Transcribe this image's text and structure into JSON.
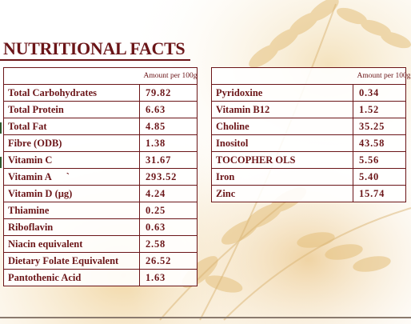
{
  "title": "NUTRITIONAL FACTS",
  "left_table": {
    "header": "Amount per 100g",
    "rows": [
      {
        "name": "Total Carbohydrates",
        "value": "79.82"
      },
      {
        "name": "Total Protein",
        "value": "6.63"
      },
      {
        "name": "Total Fat",
        "value": "4.85"
      },
      {
        "name": "Fibre (ODB)",
        "value": "1.38"
      },
      {
        "name": "Vitamin C",
        "value": "31.67"
      },
      {
        "name": "Vitamin A      `",
        "value": "293.52"
      },
      {
        "name": "Vitamin D (µg)",
        "value": "4.24"
      },
      {
        "name": "Thiamine",
        "value": "0.25"
      },
      {
        "name": "Riboflavin",
        "value": "0.63"
      },
      {
        "name": "Niacin equivalent",
        "value": "2.58"
      },
      {
        "name": "Dietary Folate Equivalent",
        "value": "26.52"
      },
      {
        "name": "Pantothenic Acid",
        "value": "1.63"
      }
    ]
  },
  "right_table": {
    "header": "Amount per 100g",
    "rows": [
      {
        "name": "Pyridoxine",
        "value": "0.34"
      },
      {
        "name": "Vitamin B12",
        "value": "1.52"
      },
      {
        "name": "Choline",
        "value": "35.25"
      },
      {
        "name": "Inositol",
        "value": "43.58"
      },
      {
        "name": "TOCOPHER OLS",
        "value": "5.56"
      },
      {
        "name": "Iron",
        "value": "5.40"
      },
      {
        "name": "Zinc",
        "value": "15.74"
      }
    ]
  },
  "colors": {
    "accent": "#6b1518",
    "wheat": "#e8c88a"
  }
}
